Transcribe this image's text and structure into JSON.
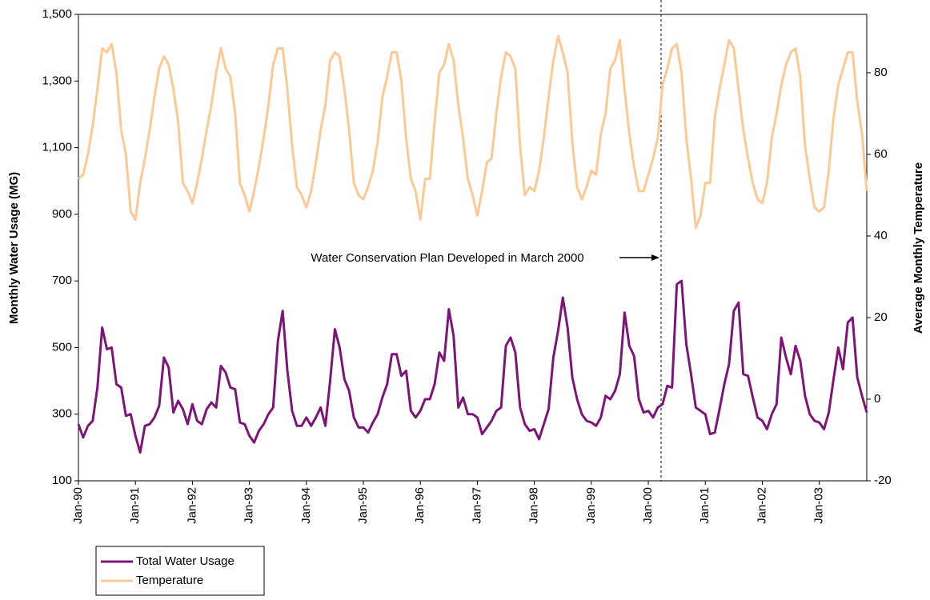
{
  "chart_data": {
    "type": "line",
    "y_label": "Monthly Water Usage (MG)",
    "y2_label": "Average Monthly Temperature",
    "annotation": "Water Conservation Plan Developed in March 2000",
    "legend": "bottom-left",
    "categories": [
      "Jan-90",
      null,
      null,
      null,
      null,
      null,
      null,
      null,
      null,
      null,
      null,
      null,
      "Jan-91",
      null,
      null,
      null,
      null,
      null,
      null,
      null,
      null,
      null,
      null,
      null,
      "Jan-92",
      null,
      null,
      null,
      null,
      null,
      null,
      null,
      null,
      null,
      null,
      null,
      "Jan-93",
      null,
      null,
      null,
      null,
      null,
      null,
      null,
      null,
      null,
      null,
      null,
      "Jan-94",
      null,
      null,
      null,
      null,
      null,
      null,
      null,
      null,
      null,
      null,
      null,
      "Jan-95",
      null,
      null,
      null,
      null,
      null,
      null,
      null,
      null,
      null,
      null,
      null,
      "Jan-96",
      null,
      null,
      null,
      null,
      null,
      null,
      null,
      null,
      null,
      null,
      null,
      "Jan-97",
      null,
      null,
      null,
      null,
      null,
      null,
      null,
      null,
      null,
      null,
      null,
      "Jan-98",
      null,
      null,
      null,
      null,
      null,
      null,
      null,
      null,
      null,
      null,
      null,
      "Jan-99",
      null,
      null,
      null,
      null,
      null,
      null,
      null,
      null,
      null,
      null,
      null,
      "Jan-00",
      null,
      null,
      null,
      null,
      null,
      null,
      null,
      null,
      null,
      null,
      null,
      "Jan-01",
      null,
      null,
      null,
      null,
      null,
      null,
      null,
      null,
      null,
      null,
      null,
      "Jan-02",
      null,
      null,
      null,
      null,
      null,
      null,
      null,
      null,
      null,
      null,
      null,
      "Jan-03",
      null,
      null,
      null,
      null,
      null,
      null,
      null,
      null,
      null,
      null
    ],
    "ylim": [
      100,
      1500
    ],
    "yticks": [
      100,
      300,
      500,
      700,
      900,
      {
        "value": 1100,
        "label": "1,100"
      },
      {
        "value": 1300,
        "label": "1,300"
      },
      {
        "value": 1500,
        "label": "1,500"
      }
    ],
    "y2lim": [
      -20,
      94.3
    ],
    "y2ticks": [
      -20,
      0,
      20,
      40,
      60,
      80
    ],
    "series": [
      {
        "name": "Total Water Usage",
        "color": "#7d1477",
        "values": [
          270,
          230,
          265,
          280,
          380,
          560,
          495,
          500,
          390,
          380,
          295,
          300,
          235,
          185,
          265,
          270,
          290,
          325,
          470,
          440,
          305,
          340,
          315,
          270,
          330,
          280,
          270,
          315,
          335,
          320,
          445,
          425,
          380,
          375,
          275,
          270,
          235,
          215,
          250,
          270,
          300,
          320,
          520,
          610,
          430,
          310,
          265,
          265,
          290,
          265,
          290,
          320,
          265,
          400,
          555,
          500,
          405,
          370,
          290,
          260,
          260,
          245,
          275,
          300,
          350,
          390,
          480,
          480,
          415,
          430,
          310,
          290,
          310,
          345,
          345,
          390,
          485,
          460,
          615,
          535,
          320,
          350,
          300,
          300,
          290,
          240,
          260,
          280,
          310,
          320,
          505,
          530,
          485,
          320,
          270,
          250,
          255,
          225,
          270,
          315,
          470,
          550,
          650,
          560,
          410,
          345,
          300,
          280,
          275,
          265,
          290,
          355,
          345,
          370,
          420,
          605,
          505,
          475,
          345,
          305,
          310,
          290,
          320,
          330,
          385,
          380,
          690,
          700,
          510,
          420,
          320,
          310,
          300,
          240,
          245,
          315,
          390,
          450,
          610,
          635,
          420,
          415,
          350,
          290,
          280,
          255,
          300,
          330,
          530,
          470,
          420,
          505,
          460,
          355,
          300,
          280,
          275,
          255,
          305,
          405,
          500,
          435,
          575,
          590,
          410,
          355,
          305
        ]
      },
      {
        "name": "Temperature",
        "color": "#fcc994",
        "axis": "y2",
        "values": [
          54,
          55,
          60,
          67,
          76,
          86,
          85,
          87,
          80,
          66,
          60,
          46,
          44,
          53,
          59,
          66,
          74,
          81,
          84,
          82,
          76,
          68,
          53,
          51,
          48,
          53,
          59,
          66,
          72,
          80,
          86,
          81,
          79,
          70,
          53,
          50,
          46,
          51,
          57,
          64,
          72,
          82,
          86,
          86,
          76,
          62,
          52,
          50,
          47,
          51,
          58,
          66,
          72,
          83,
          85,
          84,
          76,
          66,
          53,
          50,
          49,
          52,
          56,
          63,
          74,
          79,
          85,
          85,
          78,
          64,
          54,
          51,
          44,
          54,
          54,
          68,
          80,
          82,
          87,
          83,
          72,
          64,
          54,
          50,
          45,
          51,
          58,
          59,
          70,
          79,
          85,
          84,
          81,
          62,
          50,
          52,
          51,
          56,
          64,
          74,
          83,
          89,
          85,
          80,
          63,
          52,
          49,
          52,
          56,
          55,
          65,
          70,
          81,
          83,
          88,
          76,
          65,
          57,
          51,
          51,
          55,
          59,
          64,
          77,
          81,
          86,
          87,
          80,
          64,
          54,
          42,
          45,
          53,
          53,
          69,
          76,
          82,
          88,
          86,
          76,
          66,
          59,
          53,
          49,
          48,
          53,
          64,
          70,
          77,
          82,
          85,
          86,
          79,
          62,
          54,
          47,
          46,
          47,
          56,
          69,
          77,
          81,
          85,
          85,
          73,
          65,
          51
        ]
      }
    ]
  }
}
